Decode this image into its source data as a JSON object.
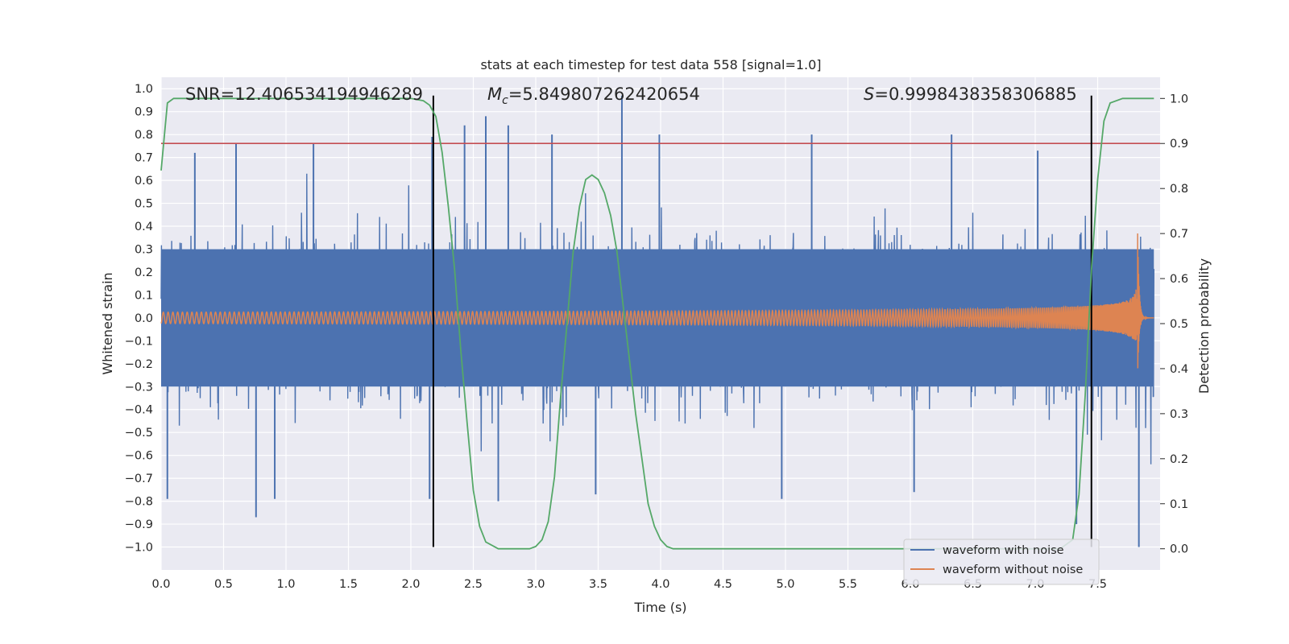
{
  "chart_data": {
    "type": "line",
    "title": "stats at each timestep for test data 558 [signal=1.0]",
    "xlabel": "Time (s)",
    "ylabel": "Whitened strain",
    "y2label": "Detection probability",
    "xlim": [
      0.0,
      8.0
    ],
    "ylim": [
      -1.1,
      1.05
    ],
    "y2lim": [
      -0.047,
      1.047
    ],
    "x_ticks": [
      0.0,
      0.5,
      1.0,
      1.5,
      2.0,
      2.5,
      3.0,
      3.5,
      4.0,
      4.5,
      5.0,
      5.5,
      6.0,
      6.5,
      7.0,
      7.5
    ],
    "x_tick_labels": [
      "0.0",
      "0.5",
      "1.0",
      "1.5",
      "2.0",
      "2.5",
      "3.0",
      "3.5",
      "4.0",
      "4.5",
      "5.0",
      "5.5",
      "6.0",
      "6.5",
      "7.0",
      "7.5"
    ],
    "y_ticks": [
      1.0,
      0.9,
      0.8,
      0.7,
      0.6,
      0.5,
      0.4,
      0.3,
      0.2,
      0.1,
      0.0,
      -0.1,
      -0.2,
      -0.3,
      -0.4,
      -0.5,
      -0.6,
      -0.7,
      -0.8,
      -0.9,
      -1.0
    ],
    "y_tick_labels": [
      "1.0",
      "0.9",
      "0.8",
      "0.7",
      "0.6",
      "0.5",
      "0.4",
      "0.3",
      "0.2",
      "0.1",
      "0.0",
      "−0.1",
      "−0.2",
      "−0.3",
      "−0.4",
      "−0.5",
      "−0.6",
      "−0.7",
      "−0.8",
      "−0.9",
      "−1.0"
    ],
    "y2_ticks": [
      1.0,
      0.9,
      0.8,
      0.7,
      0.6,
      0.5,
      0.4,
      0.3,
      0.2,
      0.1,
      0.0
    ],
    "y2_tick_labels": [
      "1.0",
      "0.9",
      "0.8",
      "0.7",
      "0.6",
      "0.5",
      "0.4",
      "0.3",
      "0.2",
      "0.1",
      "0.0"
    ],
    "grid": true,
    "legend_position": "lower-right",
    "annotations": {
      "snr": "SNR=12.406534194946289",
      "mc_symbol": "M",
      "mc_sub": "c",
      "mc_value": "=5.849807262420654",
      "s_symbol": "S",
      "s_value": "=0.9998438358306885"
    },
    "threshold_line": {
      "axis": "y2",
      "value": 0.9,
      "color": "#c44e52"
    },
    "vertical_lines": [
      2.18,
      7.45
    ],
    "vertical_lines_range": [
      -1.0,
      0.97
    ],
    "series": [
      {
        "name": "waveform with noise",
        "color": "#4c72b0",
        "kind": "noise",
        "description": "dense whitened strain, typical amplitude about 0.45",
        "peaks": [
          [
            0.27,
            0.72
          ],
          [
            0.6,
            0.76
          ],
          [
            1.22,
            0.76
          ],
          [
            2.17,
            0.79
          ],
          [
            2.43,
            0.84
          ],
          [
            2.6,
            0.88
          ],
          [
            2.78,
            0.84
          ],
          [
            3.13,
            0.8
          ],
          [
            3.69,
            0.97
          ],
          [
            3.99,
            0.8
          ],
          [
            5.21,
            0.8
          ],
          [
            6.33,
            0.8
          ],
          [
            7.02,
            0.73
          ]
        ],
        "troughs": [
          [
            0.05,
            -0.79
          ],
          [
            0.76,
            -0.87
          ],
          [
            0.91,
            -0.79
          ],
          [
            2.15,
            -0.79
          ],
          [
            2.7,
            -0.8
          ],
          [
            3.48,
            -0.77
          ],
          [
            4.97,
            -0.79
          ],
          [
            6.03,
            -0.76
          ],
          [
            7.33,
            -0.9
          ],
          [
            7.83,
            -1.0
          ]
        ]
      },
      {
        "name": "waveform without noise",
        "color": "#dd8452",
        "kind": "chirp",
        "amplitude_start": 0.025,
        "amplitude_peak": 0.38,
        "merger_time": 7.82,
        "end_time": 7.95
      },
      {
        "name": "",
        "color": "#55a868",
        "axis": "y2",
        "x": [
          0.0,
          0.05,
          0.1,
          0.15,
          0.5,
          1.0,
          1.5,
          2.0,
          2.1,
          2.15,
          2.2,
          2.25,
          2.3,
          2.35,
          2.4,
          2.45,
          2.5,
          2.55,
          2.6,
          2.7,
          2.8,
          2.9,
          2.95,
          3.0,
          3.05,
          3.1,
          3.15,
          3.2,
          3.25,
          3.3,
          3.35,
          3.4,
          3.45,
          3.5,
          3.55,
          3.6,
          3.65,
          3.7,
          3.75,
          3.8,
          3.85,
          3.9,
          3.95,
          4.0,
          4.05,
          4.1,
          4.15,
          4.3,
          5.0,
          6.0,
          7.0,
          7.2,
          7.3,
          7.35,
          7.4,
          7.45,
          7.5,
          7.55,
          7.6,
          7.7,
          7.95
        ],
        "values": [
          0.84,
          0.99,
          1.0,
          1.0,
          1.0,
          1.0,
          1.0,
          1.0,
          0.995,
          0.985,
          0.96,
          0.88,
          0.76,
          0.62,
          0.44,
          0.28,
          0.13,
          0.05,
          0.015,
          0.0,
          0.0,
          0.0,
          0.0,
          0.005,
          0.02,
          0.06,
          0.16,
          0.34,
          0.5,
          0.66,
          0.76,
          0.82,
          0.83,
          0.82,
          0.79,
          0.74,
          0.66,
          0.54,
          0.42,
          0.3,
          0.2,
          0.1,
          0.05,
          0.02,
          0.005,
          0.0,
          0.0,
          0.0,
          0.0,
          0.0,
          0.0,
          0.0,
          0.02,
          0.12,
          0.34,
          0.62,
          0.82,
          0.95,
          0.99,
          1.0,
          1.0
        ]
      }
    ]
  }
}
